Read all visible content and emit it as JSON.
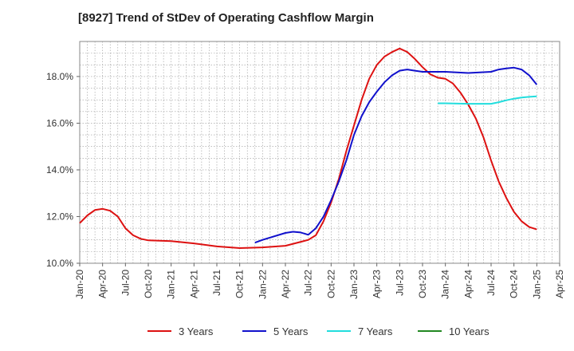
{
  "chart_data": {
    "type": "line",
    "title": "[8927]  Trend of StDev of Operating Cashflow Margin",
    "xlabel": "",
    "ylabel": "",
    "x_ticks": [
      "Jan-20",
      "Apr-20",
      "Jul-20",
      "Oct-20",
      "Jan-21",
      "Apr-21",
      "Jul-21",
      "Oct-21",
      "Jan-22",
      "Apr-22",
      "Jul-22",
      "Oct-22",
      "Jan-23",
      "Apr-23",
      "Jul-23",
      "Oct-23",
      "Jan-24",
      "Apr-24",
      "Jul-24",
      "Oct-24",
      "Jan-25",
      "Apr-25"
    ],
    "y_ticks": [
      "10.0%",
      "12.0%",
      "14.0%",
      "16.0%",
      "18.0%"
    ],
    "ylim": [
      10.0,
      19.5
    ],
    "grid": true,
    "legend_position": "bottom",
    "series": [
      {
        "name": "3 Years",
        "color": "#dd1111",
        "points": [
          [
            "Jan-20",
            11.72
          ],
          [
            "Feb-20",
            12.05
          ],
          [
            "Mar-20",
            12.28
          ],
          [
            "Apr-20",
            12.33
          ],
          [
            "May-20",
            12.25
          ],
          [
            "Jun-20",
            12.0
          ],
          [
            "Jul-20",
            11.5
          ],
          [
            "Aug-20",
            11.2
          ],
          [
            "Sep-20",
            11.05
          ],
          [
            "Oct-20",
            10.98
          ],
          [
            "Jan-21",
            10.95
          ],
          [
            "Apr-21",
            10.85
          ],
          [
            "Jul-21",
            10.72
          ],
          [
            "Oct-21",
            10.65
          ],
          [
            "Jan-22",
            10.68
          ],
          [
            "Apr-22",
            10.75
          ],
          [
            "Jul-22",
            11.0
          ],
          [
            "Aug-22",
            11.2
          ],
          [
            "Sep-22",
            11.8
          ],
          [
            "Oct-22",
            12.6
          ],
          [
            "Nov-22",
            13.6
          ],
          [
            "Dec-22",
            14.8
          ],
          [
            "Jan-23",
            15.9
          ],
          [
            "Feb-23",
            17.0
          ],
          [
            "Mar-23",
            17.9
          ],
          [
            "Apr-23",
            18.5
          ],
          [
            "May-23",
            18.85
          ],
          [
            "Jun-23",
            19.05
          ],
          [
            "Jul-23",
            19.2
          ],
          [
            "Aug-23",
            19.05
          ],
          [
            "Sep-23",
            18.75
          ],
          [
            "Oct-23",
            18.4
          ],
          [
            "Nov-23",
            18.1
          ],
          [
            "Dec-23",
            17.95
          ],
          [
            "Jan-24",
            17.9
          ],
          [
            "Feb-24",
            17.7
          ],
          [
            "Mar-24",
            17.3
          ],
          [
            "Apr-24",
            16.8
          ],
          [
            "May-24",
            16.2
          ],
          [
            "Jun-24",
            15.4
          ],
          [
            "Jul-24",
            14.4
          ],
          [
            "Aug-24",
            13.5
          ],
          [
            "Sep-24",
            12.8
          ],
          [
            "Oct-24",
            12.2
          ],
          [
            "Nov-24",
            11.8
          ],
          [
            "Dec-24",
            11.55
          ],
          [
            "Jan-25",
            11.45
          ]
        ]
      },
      {
        "name": "5 Years",
        "color": "#1111cc",
        "points": [
          [
            "Dec-21",
            10.88
          ],
          [
            "Jan-22",
            11.0
          ],
          [
            "Apr-22",
            11.3
          ],
          [
            "May-22",
            11.35
          ],
          [
            "Jun-22",
            11.32
          ],
          [
            "Jul-22",
            11.22
          ],
          [
            "Aug-22",
            11.5
          ],
          [
            "Sep-22",
            12.0
          ],
          [
            "Oct-22",
            12.7
          ],
          [
            "Nov-22",
            13.5
          ],
          [
            "Dec-22",
            14.4
          ],
          [
            "Jan-23",
            15.5
          ],
          [
            "Feb-23",
            16.3
          ],
          [
            "Mar-23",
            16.9
          ],
          [
            "Apr-23",
            17.35
          ],
          [
            "May-23",
            17.75
          ],
          [
            "Jun-23",
            18.05
          ],
          [
            "Jul-23",
            18.25
          ],
          [
            "Aug-23",
            18.3
          ],
          [
            "Sep-23",
            18.25
          ],
          [
            "Oct-23",
            18.2
          ],
          [
            "Jan-24",
            18.2
          ],
          [
            "Apr-24",
            18.15
          ],
          [
            "Jul-24",
            18.2
          ],
          [
            "Aug-24",
            18.3
          ],
          [
            "Sep-24",
            18.35
          ],
          [
            "Oct-24",
            18.38
          ],
          [
            "Nov-24",
            18.3
          ],
          [
            "Dec-24",
            18.05
          ],
          [
            "Jan-25",
            17.65
          ]
        ]
      },
      {
        "name": "7 Years",
        "color": "#22dddd",
        "points": [
          [
            "Dec-23",
            16.85
          ],
          [
            "Jan-24",
            16.85
          ],
          [
            "Apr-24",
            16.83
          ],
          [
            "Jul-24",
            16.83
          ],
          [
            "Aug-24",
            16.9
          ],
          [
            "Sep-24",
            16.98
          ],
          [
            "Oct-24",
            17.05
          ],
          [
            "Nov-24",
            17.1
          ],
          [
            "Dec-24",
            17.13
          ],
          [
            "Jan-25",
            17.15
          ]
        ]
      },
      {
        "name": "10 Years",
        "color": "#228822",
        "points": []
      }
    ]
  }
}
